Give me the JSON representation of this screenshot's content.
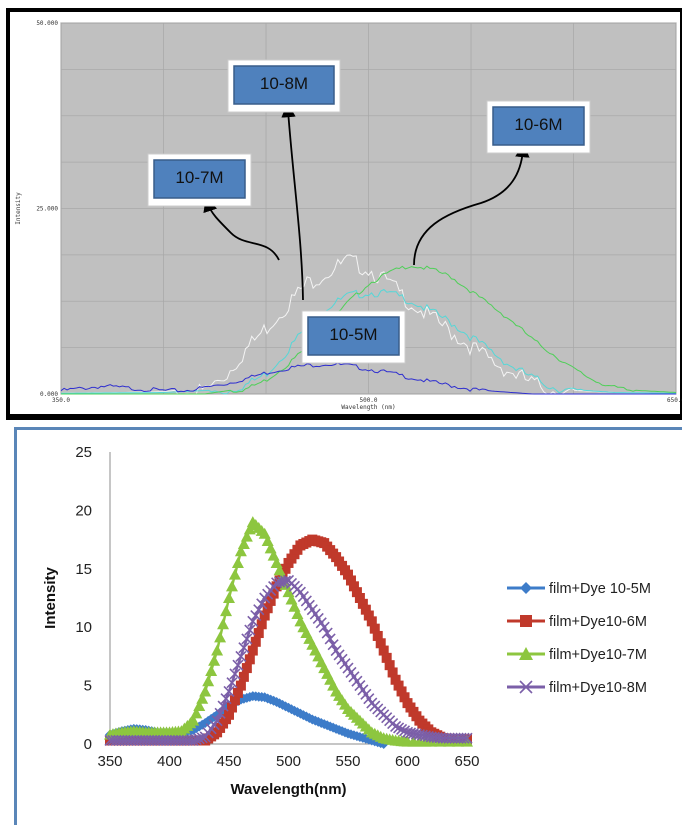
{
  "chart_data": [
    {
      "type": "line",
      "xlabel": "Wavelength (nm)",
      "ylabel": "Intensity",
      "xlim": [
        350,
        650
      ],
      "ylim": [
        0,
        50
      ],
      "x_ticks": [
        "350.0",
        "500.0",
        "650.0"
      ],
      "y_ticks": [
        "0.000",
        "25.000",
        "50.000"
      ],
      "grid": true,
      "background": "#c0c0c0",
      "series": [
        {
          "name": "10-8M",
          "color": "#f4f4f4",
          "points": [
            [
              350,
              0.1
            ],
            [
              380,
              0.2
            ],
            [
              400,
              0.3
            ],
            [
              420,
              1.0
            ],
            [
              430,
              3.0
            ],
            [
              440,
              6.5
            ],
            [
              450,
              9.5
            ],
            [
              460,
              12.5
            ],
            [
              470,
              15.5
            ],
            [
              480,
              17.0
            ],
            [
              490,
              18.5
            ],
            [
              500,
              17.5
            ],
            [
              510,
              15.5
            ],
            [
              520,
              13.0
            ],
            [
              530,
              11.0
            ],
            [
              540,
              9.0
            ],
            [
              550,
              7.0
            ],
            [
              560,
              5.0
            ],
            [
              570,
              3.5
            ],
            [
              580,
              2.0
            ],
            [
              590,
              1.0
            ],
            [
              600,
              0.5
            ],
            [
              620,
              0.2
            ],
            [
              650,
              0.1
            ]
          ]
        },
        {
          "name": "10-7M",
          "color": "#55d7d7",
          "points": [
            [
              350,
              0.1
            ],
            [
              400,
              0.2
            ],
            [
              430,
              0.6
            ],
            [
              440,
              1.5
            ],
            [
              450,
              3.0
            ],
            [
              460,
              6.0
            ],
            [
              470,
              9.5
            ],
            [
              480,
              12.0
            ],
            [
              490,
              13.5
            ],
            [
              500,
              14.0
            ],
            [
              510,
              13.8
            ],
            [
              520,
              13.0
            ],
            [
              530,
              11.5
            ],
            [
              540,
              10.0
            ],
            [
              550,
              8.0
            ],
            [
              560,
              6.0
            ],
            [
              570,
              4.0
            ],
            [
              580,
              2.5
            ],
            [
              590,
              1.2
            ],
            [
              600,
              0.6
            ],
            [
              620,
              0.2
            ],
            [
              650,
              0.1
            ]
          ]
        },
        {
          "name": "10-6M",
          "color": "#4fcf58",
          "points": [
            [
              350,
              0.0
            ],
            [
              420,
              0.0
            ],
            [
              440,
              0.8
            ],
            [
              450,
              2.0
            ],
            [
              460,
              4.0
            ],
            [
              470,
              6.5
            ],
            [
              480,
              9.5
            ],
            [
              490,
              12.5
            ],
            [
              500,
              15.0
            ],
            [
              510,
              16.5
            ],
            [
              520,
              17.5
            ],
            [
              530,
              17.0
            ],
            [
              540,
              16.0
            ],
            [
              550,
              14.0
            ],
            [
              560,
              12.0
            ],
            [
              570,
              10.0
            ],
            [
              580,
              7.5
            ],
            [
              590,
              5.5
            ],
            [
              600,
              3.5
            ],
            [
              610,
              2.0
            ],
            [
              620,
              1.0
            ],
            [
              630,
              0.5
            ],
            [
              650,
              0.2
            ]
          ]
        },
        {
          "name": "10-5M",
          "color": "#2f2fcf",
          "points": [
            [
              350,
              0.6
            ],
            [
              360,
              0.9
            ],
            [
              370,
              1.2
            ],
            [
              380,
              1.0
            ],
            [
              390,
              0.8
            ],
            [
              400,
              0.6
            ],
            [
              410,
              0.6
            ],
            [
              420,
              1.0
            ],
            [
              430,
              1.5
            ],
            [
              440,
              2.2
            ],
            [
              450,
              3.0
            ],
            [
              460,
              3.6
            ],
            [
              470,
              4.0
            ],
            [
              480,
              4.2
            ],
            [
              490,
              4.0
            ],
            [
              500,
              3.5
            ],
            [
              510,
              3.0
            ],
            [
              520,
              2.4
            ],
            [
              530,
              1.8
            ],
            [
              540,
              1.3
            ],
            [
              550,
              0.8
            ],
            [
              560,
              0.4
            ],
            [
              570,
              0.2
            ],
            [
              580,
              0.0
            ],
            [
              650,
              0.0
            ]
          ]
        }
      ],
      "callouts": [
        "10-7M",
        "10-8M",
        "10-6M",
        "10-5M"
      ]
    },
    {
      "type": "scatter",
      "xlabel": "Wavelength(nm)",
      "ylabel": "Intensity",
      "xlim": [
        350,
        650
      ],
      "ylim": [
        0,
        25
      ],
      "x_ticks": [
        "350",
        "400",
        "450",
        "500",
        "550",
        "600",
        "650"
      ],
      "y_ticks": [
        "0",
        "5",
        "10",
        "15",
        "20",
        "25"
      ],
      "grid": false,
      "legend_position": "right",
      "series": [
        {
          "name": "film+Dye 10-5M",
          "color": "#3d7cc9",
          "marker": "diamond",
          "points": [
            [
              350,
              0.8
            ],
            [
              360,
              1.1
            ],
            [
              370,
              1.3
            ],
            [
              380,
              1.2
            ],
            [
              390,
              1.0
            ],
            [
              400,
              1.0
            ],
            [
              410,
              1.0
            ],
            [
              420,
              1.2
            ],
            [
              430,
              1.8
            ],
            [
              440,
              2.5
            ],
            [
              450,
              3.3
            ],
            [
              460,
              3.8
            ],
            [
              470,
              4.1
            ],
            [
              480,
              4.0
            ],
            [
              490,
              3.6
            ],
            [
              500,
              3.1
            ],
            [
              510,
              2.6
            ],
            [
              520,
              2.1
            ],
            [
              530,
              1.7
            ],
            [
              540,
              1.3
            ],
            [
              550,
              0.9
            ],
            [
              560,
              0.6
            ],
            [
              570,
              0.3
            ],
            [
              580,
              0.0
            ]
          ]
        },
        {
          "name": "film+Dye10-6M",
          "color": "#c0392b",
          "marker": "square",
          "points": [
            [
              350,
              0.3
            ],
            [
              360,
              0.3
            ],
            [
              370,
              0.3
            ],
            [
              380,
              0.3
            ],
            [
              390,
              0.3
            ],
            [
              400,
              0.3
            ],
            [
              410,
              0.3
            ],
            [
              420,
              0.3
            ],
            [
              430,
              0.3
            ],
            [
              440,
              1.0
            ],
            [
              450,
              2.5
            ],
            [
              460,
              5.0
            ],
            [
              470,
              8.0
            ],
            [
              480,
              11.0
            ],
            [
              490,
              13.5
            ],
            [
              500,
              15.5
            ],
            [
              510,
              17.0
            ],
            [
              520,
              17.5
            ],
            [
              530,
              17.2
            ],
            [
              540,
              16.0
            ],
            [
              550,
              14.5
            ],
            [
              560,
              12.5
            ],
            [
              570,
              10.5
            ],
            [
              580,
              8.0
            ],
            [
              590,
              5.5
            ],
            [
              600,
              3.5
            ],
            [
              610,
              2.0
            ],
            [
              620,
              1.0
            ],
            [
              630,
              0.5
            ],
            [
              640,
              0.4
            ],
            [
              650,
              0.4
            ]
          ]
        },
        {
          "name": "film+Dye10-7M",
          "color": "#8dc63f",
          "marker": "triangle",
          "points": [
            [
              350,
              0.8
            ],
            [
              360,
              1.0
            ],
            [
              370,
              1.1
            ],
            [
              380,
              1.0
            ],
            [
              390,
              1.0
            ],
            [
              400,
              1.0
            ],
            [
              410,
              1.1
            ],
            [
              420,
              2.0
            ],
            [
              430,
              4.5
            ],
            [
              440,
              8.0
            ],
            [
              450,
              12.5
            ],
            [
              460,
              16.5
            ],
            [
              470,
              19.0
            ],
            [
              480,
              18.0
            ],
            [
              490,
              15.5
            ],
            [
              500,
              13.0
            ],
            [
              510,
              10.5
            ],
            [
              520,
              8.5
            ],
            [
              530,
              6.5
            ],
            [
              540,
              4.5
            ],
            [
              550,
              3.0
            ],
            [
              560,
              2.0
            ],
            [
              570,
              1.0
            ],
            [
              580,
              0.5
            ],
            [
              590,
              0.3
            ],
            [
              600,
              0.2
            ],
            [
              620,
              0.2
            ],
            [
              650,
              0.2
            ]
          ]
        },
        {
          "name": "film+Dye10-8M",
          "color": "#7b5fa8",
          "marker": "x",
          "points": [
            [
              350,
              0.3
            ],
            [
              360,
              0.3
            ],
            [
              370,
              0.3
            ],
            [
              380,
              0.3
            ],
            [
              390,
              0.3
            ],
            [
              400,
              0.3
            ],
            [
              410,
              0.3
            ],
            [
              420,
              0.3
            ],
            [
              430,
              0.6
            ],
            [
              440,
              2.0
            ],
            [
              450,
              4.5
            ],
            [
              460,
              7.5
            ],
            [
              470,
              10.5
            ],
            [
              480,
              12.5
            ],
            [
              490,
              13.8
            ],
            [
              500,
              14.0
            ],
            [
              510,
              13.0
            ],
            [
              520,
              11.5
            ],
            [
              530,
              10.0
            ],
            [
              540,
              8.0
            ],
            [
              550,
              6.5
            ],
            [
              560,
              5.0
            ],
            [
              570,
              3.5
            ],
            [
              580,
              2.5
            ],
            [
              590,
              1.5
            ],
            [
              600,
              1.0
            ],
            [
              610,
              0.8
            ],
            [
              620,
              0.6
            ],
            [
              630,
              0.5
            ],
            [
              640,
              0.5
            ],
            [
              650,
              0.5
            ]
          ]
        }
      ]
    }
  ]
}
